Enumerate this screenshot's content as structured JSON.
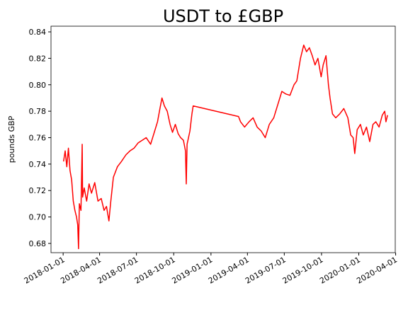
{
  "chart_data": {
    "type": "line",
    "title": "USDT to £GBP",
    "y_label": "pounds GBP",
    "color": "#ff0000",
    "xlim": [
      "2017-12-02",
      "2020-03-31"
    ],
    "xticks": [
      "2018-01-01",
      "2018-04-01",
      "2018-07-01",
      "2018-10-01",
      "2019-01-01",
      "2019-04-01",
      "2019-07-01",
      "2019-10-01",
      "2020-01-01",
      "2020-04-01"
    ],
    "ylim": [
      0.673,
      0.8443
    ],
    "yticks": [
      0.68,
      {
        "value": 0.7,
        "label": "0.70"
      },
      0.72,
      0.74,
      0.76,
      0.78,
      {
        "value": 0.8,
        "label": "0.80"
      },
      0.82,
      0.84
    ],
    "x": [
      "2018-01-02",
      "2018-01-06",
      "2018-01-10",
      "2018-01-14",
      "2018-01-18",
      "2018-01-22",
      "2018-01-26",
      "2018-01-30",
      "2018-02-03",
      "2018-02-06",
      "2018-02-08",
      "2018-02-10",
      "2018-02-14",
      "2018-02-17",
      "2018-02-18",
      "2018-02-22",
      "2018-02-28",
      "2018-03-06",
      "2018-03-12",
      "2018-03-20",
      "2018-03-28",
      "2018-04-05",
      "2018-04-12",
      "2018-04-18",
      "2018-04-24",
      "2018-04-28",
      "2018-05-05",
      "2018-05-15",
      "2018-05-25",
      "2018-06-05",
      "2018-06-15",
      "2018-06-25",
      "2018-07-05",
      "2018-07-15",
      "2018-07-25",
      "2018-08-05",
      "2018-08-15",
      "2018-08-22",
      "2018-08-28",
      "2018-09-02",
      "2018-09-08",
      "2018-09-15",
      "2018-09-22",
      "2018-09-28",
      "2018-10-05",
      "2018-10-12",
      "2018-10-18",
      "2018-10-25",
      "2018-10-30",
      "2018-11-01",
      "2018-11-03",
      "2018-11-10",
      "2018-11-15",
      "2018-11-18",
      "2019-03-10",
      "2019-03-15",
      "2019-03-25",
      "2019-04-05",
      "2019-04-15",
      "2019-04-25",
      "2019-05-05",
      "2019-05-15",
      "2019-05-25",
      "2019-06-05",
      "2019-06-15",
      "2019-06-25",
      "2019-07-05",
      "2019-07-15",
      "2019-07-25",
      "2019-08-01",
      "2019-08-10",
      "2019-08-18",
      "2019-08-25",
      "2019-09-01",
      "2019-09-08",
      "2019-09-15",
      "2019-09-22",
      "2019-09-30",
      "2019-10-05",
      "2019-10-12",
      "2019-10-18",
      "2019-10-22",
      "2019-10-28",
      "2019-11-05",
      "2019-11-15",
      "2019-11-25",
      "2019-12-05",
      "2019-12-12",
      "2019-12-18",
      "2019-12-22",
      "2019-12-28",
      "2020-01-05",
      "2020-01-12",
      "2020-01-20",
      "2020-01-28",
      "2020-02-05",
      "2020-02-12",
      "2020-02-20",
      "2020-02-28",
      "2020-03-05",
      "2020-03-08",
      "2020-03-12"
    ],
    "values": [
      0.742,
      0.75,
      0.738,
      0.752,
      0.735,
      0.728,
      0.712,
      0.705,
      0.7,
      0.694,
      0.676,
      0.71,
      0.705,
      0.755,
      0.715,
      0.722,
      0.712,
      0.725,
      0.718,
      0.726,
      0.712,
      0.714,
      0.705,
      0.708,
      0.697,
      0.71,
      0.73,
      0.738,
      0.742,
      0.747,
      0.75,
      0.752,
      0.756,
      0.758,
      0.76,
      0.755,
      0.765,
      0.772,
      0.782,
      0.79,
      0.784,
      0.78,
      0.77,
      0.764,
      0.77,
      0.763,
      0.76,
      0.758,
      0.75,
      0.725,
      0.755,
      0.765,
      0.778,
      0.784,
      0.776,
      0.772,
      0.768,
      0.772,
      0.775,
      0.768,
      0.765,
      0.76,
      0.77,
      0.775,
      0.785,
      0.795,
      0.793,
      0.792,
      0.8,
      0.803,
      0.82,
      0.83,
      0.825,
      0.828,
      0.822,
      0.815,
      0.82,
      0.806,
      0.815,
      0.822,
      0.8,
      0.79,
      0.778,
      0.775,
      0.778,
      0.782,
      0.775,
      0.762,
      0.76,
      0.748,
      0.766,
      0.77,
      0.762,
      0.768,
      0.757,
      0.77,
      0.772,
      0.768,
      0.777,
      0.78,
      0.772,
      0.777
    ]
  }
}
